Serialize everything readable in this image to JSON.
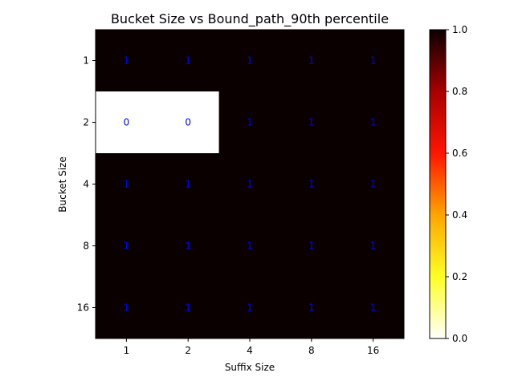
{
  "chart_data": {
    "type": "heatmap",
    "title": "Bucket Size vs Bound_path_90th percentile",
    "xlabel": "Suffix Size",
    "ylabel": "Bucket Size",
    "x_categories": [
      "1",
      "2",
      "4",
      "8",
      "16"
    ],
    "y_categories": [
      "1",
      "2",
      "4",
      "8",
      "16"
    ],
    "values": [
      [
        1,
        1,
        1,
        1,
        1
      ],
      [
        0,
        0,
        1,
        1,
        1
      ],
      [
        1,
        1,
        1,
        1,
        1
      ],
      [
        1,
        1,
        1,
        1,
        1
      ],
      [
        1,
        1,
        1,
        1,
        1
      ]
    ],
    "annotation_color": "#0000ff",
    "colormap": "hot_r",
    "colorbar": {
      "min": 0.0,
      "max": 1.0,
      "ticks": [
        "0.0",
        "0.2",
        "0.4",
        "0.6",
        "0.8",
        "1.0"
      ]
    }
  }
}
